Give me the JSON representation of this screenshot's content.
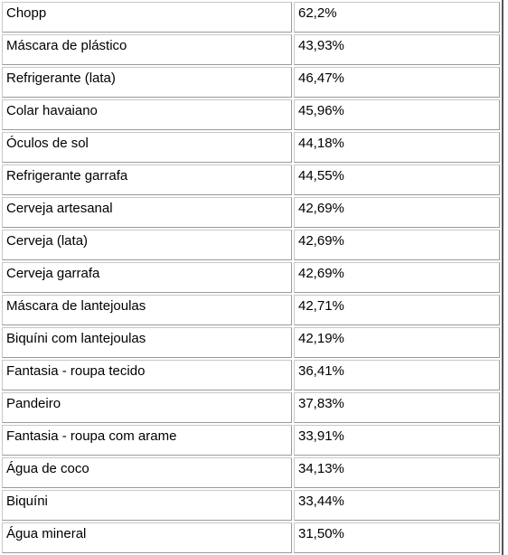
{
  "table": {
    "rows": [
      [
        "Chopp",
        "62,2%"
      ],
      [
        "Máscara de plástico",
        "43,93%"
      ],
      [
        "Refrigerante (lata)",
        "46,47%"
      ],
      [
        "Colar havaiano",
        "45,96%"
      ],
      [
        "Óculos de sol",
        "44,18%"
      ],
      [
        "Refrigerante garrafa",
        "44,55%"
      ],
      [
        "Cerveja artesanal",
        "42,69%"
      ],
      [
        "Cerveja (lata)",
        "42,69%"
      ],
      [
        "Cerveja garrafa",
        "42,69%"
      ],
      [
        "Máscara de lantejoulas",
        "42,71%"
      ],
      [
        "Biquíni com lantejoulas",
        "42,19%"
      ],
      [
        "Fantasia - roupa tecido",
        "36,41%"
      ],
      [
        "Pandeiro",
        "37,83%"
      ],
      [
        "Fantasia - roupa com arame",
        "33,91%"
      ],
      [
        "Água de coco",
        "34,13%"
      ],
      [
        "Biquíni",
        "33,44%"
      ],
      [
        "Água mineral",
        "31,50%"
      ]
    ]
  }
}
